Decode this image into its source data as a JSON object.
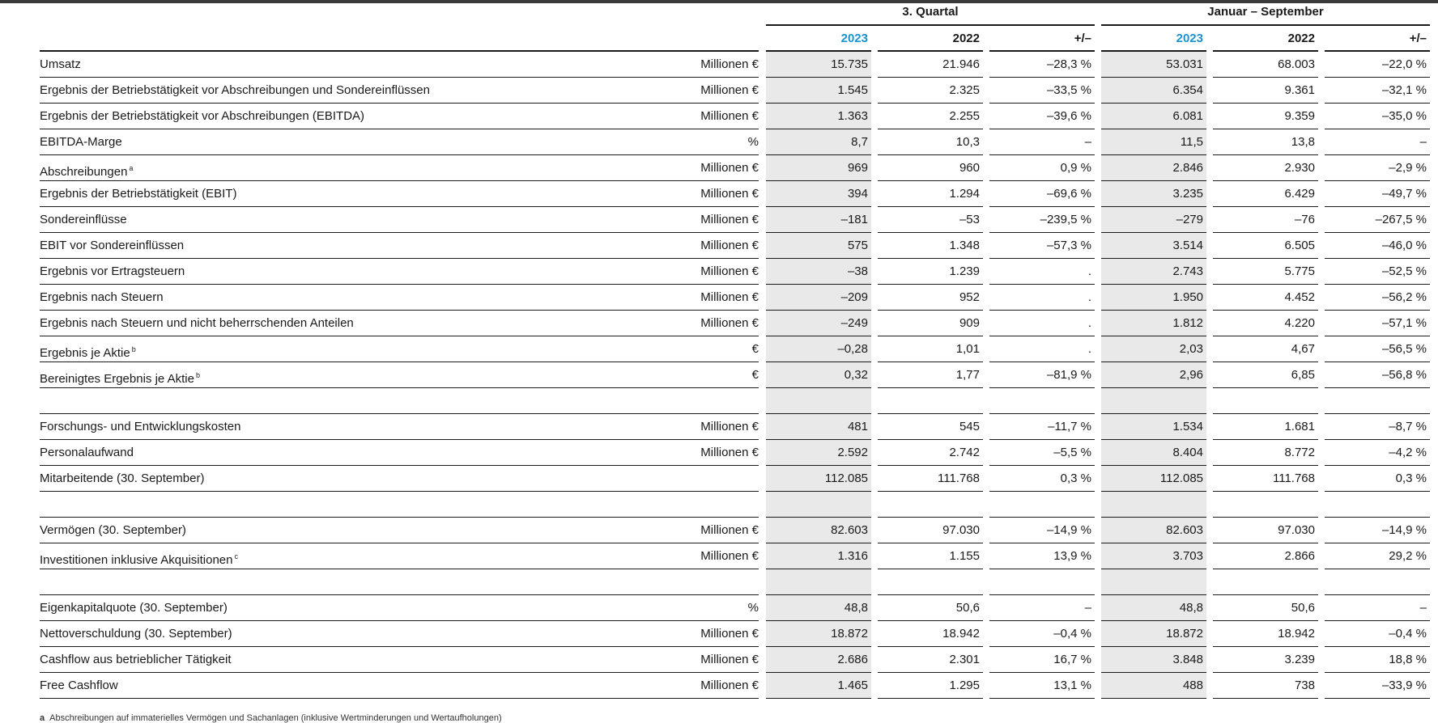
{
  "header": {
    "group1": "3. Quartal",
    "group2": "Januar – September",
    "columns": [
      "2023",
      "2022",
      "+/–",
      "2023",
      "2022",
      "+/–"
    ]
  },
  "rows": [
    {
      "label": "Umsatz",
      "sup": "",
      "unit": "Millionen €",
      "values": [
        "15.735",
        "21.946",
        "–28,3 %",
        "53.031",
        "68.003",
        "–22,0 %"
      ]
    },
    {
      "label": "Ergebnis der Betriebstätigkeit vor Abschreibungen und Sondereinflüssen",
      "sup": "",
      "unit": "Millionen €",
      "values": [
        "1.545",
        "2.325",
        "–33,5 %",
        "6.354",
        "9.361",
        "–32,1 %"
      ]
    },
    {
      "label": "Ergebnis der Betriebstätigkeit vor Abschreibungen (EBITDA)",
      "sup": "",
      "unit": "Millionen €",
      "values": [
        "1.363",
        "2.255",
        "–39,6 %",
        "6.081",
        "9.359",
        "–35,0 %"
      ]
    },
    {
      "label": "EBITDA-Marge",
      "sup": "",
      "unit": "%",
      "values": [
        "8,7",
        "10,3",
        "–",
        "11,5",
        "13,8",
        "–"
      ]
    },
    {
      "label": "Abschreibungen",
      "sup": "a",
      "unit": "Millionen €",
      "values": [
        "969",
        "960",
        "0,9 %",
        "2.846",
        "2.930",
        "–2,9 %"
      ]
    },
    {
      "label": "Ergebnis der Betriebstätigkeit (EBIT)",
      "sup": "",
      "unit": "Millionen €",
      "values": [
        "394",
        "1.294",
        "–69,6 %",
        "3.235",
        "6.429",
        "–49,7 %"
      ]
    },
    {
      "label": "Sondereinflüsse",
      "sup": "",
      "unit": "Millionen €",
      "values": [
        "–181",
        "–53",
        "–239,5 %",
        "–279",
        "–76",
        "–267,5 %"
      ]
    },
    {
      "label": "EBIT vor Sondereinflüssen",
      "sup": "",
      "unit": "Millionen €",
      "values": [
        "575",
        "1.348",
        "–57,3 %",
        "3.514",
        "6.505",
        "–46,0 %"
      ]
    },
    {
      "label": "Ergebnis vor Ertragsteuern",
      "sup": "",
      "unit": "Millionen €",
      "values": [
        "–38",
        "1.239",
        ".",
        "2.743",
        "5.775",
        "–52,5 %"
      ]
    },
    {
      "label": "Ergebnis nach Steuern",
      "sup": "",
      "unit": "Millionen €",
      "values": [
        "–209",
        "952",
        ".",
        "1.950",
        "4.452",
        "–56,2 %"
      ]
    },
    {
      "label": "Ergebnis nach Steuern und nicht beherrschenden Anteilen",
      "sup": "",
      "unit": "Millionen €",
      "values": [
        "–249",
        "909",
        ".",
        "1.812",
        "4.220",
        "–57,1 %"
      ]
    },
    {
      "label": "Ergebnis je Aktie",
      "sup": "b",
      "unit": "€",
      "values": [
        "–0,28",
        "1,01",
        ".",
        "2,03",
        "4,67",
        "–56,5 %"
      ]
    },
    {
      "label": "Bereinigtes Ergebnis je Aktie",
      "sup": "b",
      "unit": "€",
      "values": [
        "0,32",
        "1,77",
        "–81,9 %",
        "2,96",
        "6,85",
        "–56,8 %"
      ]
    },
    {
      "blank": true
    },
    {
      "label": "Forschungs- und Entwicklungskosten",
      "sup": "",
      "unit": "Millionen €",
      "values": [
        "481",
        "545",
        "–11,7 %",
        "1.534",
        "1.681",
        "–8,7 %"
      ]
    },
    {
      "label": "Personalaufwand",
      "sup": "",
      "unit": "Millionen €",
      "values": [
        "2.592",
        "2.742",
        "–5,5 %",
        "8.404",
        "8.772",
        "–4,2 %"
      ]
    },
    {
      "label": "Mitarbeitende (30. September)",
      "sup": "",
      "unit": "",
      "values": [
        "112.085",
        "111.768",
        "0,3 %",
        "112.085",
        "111.768",
        "0,3 %"
      ]
    },
    {
      "blank": true
    },
    {
      "label": "Vermögen (30. September)",
      "sup": "",
      "unit": "Millionen €",
      "values": [
        "82.603",
        "97.030",
        "–14,9 %",
        "82.603",
        "97.030",
        "–14,9 %"
      ]
    },
    {
      "label": "Investitionen inklusive Akquisitionen",
      "sup": "c",
      "unit": "Millionen €",
      "values": [
        "1.316",
        "1.155",
        "13,9 %",
        "3.703",
        "2.866",
        "29,2 %"
      ]
    },
    {
      "blank": true
    },
    {
      "label": "Eigenkapitalquote (30. September)",
      "sup": "",
      "unit": "%",
      "values": [
        "48,8",
        "50,6",
        "–",
        "48,8",
        "50,6",
        "–"
      ]
    },
    {
      "label": "Nettoverschuldung (30. September)",
      "sup": "",
      "unit": "Millionen €",
      "values": [
        "18.872",
        "18.942",
        "–0,4 %",
        "18.872",
        "18.942",
        "–0,4 %"
      ]
    },
    {
      "label": "Cashflow aus betrieblicher Tätigkeit",
      "sup": "",
      "unit": "Millionen €",
      "values": [
        "2.686",
        "2.301",
        "16,7 %",
        "3.848",
        "3.239",
        "18,8 %"
      ]
    },
    {
      "label": "Free Cashflow",
      "sup": "",
      "unit": "Millionen €",
      "values": [
        "1.465",
        "1.295",
        "13,1 %",
        "488",
        "738",
        "–33,9 %"
      ]
    }
  ],
  "footnote": {
    "marker": "a",
    "text": "Abschreibungen auf immaterielles Vermögen und Sachanlagen (inklusive Wertminderungen und Wertaufholungen)"
  },
  "colors": {
    "highlight_year": "#1b93d1",
    "shaded_column": "#e9e9e9",
    "rule": "#1a1a1a"
  }
}
